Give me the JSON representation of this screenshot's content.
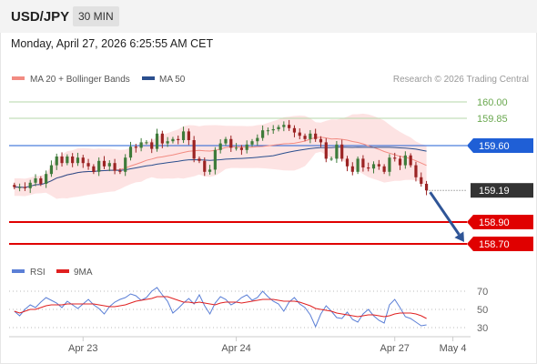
{
  "header": {
    "pair": "USD/JPY",
    "timeframe": "30 MIN"
  },
  "datetime": "Monday, April 27, 2026 6:25:55 AM CET",
  "legend": {
    "ma20": "MA 20 + Bollinger Bands",
    "ma50": "MA 50",
    "ma20_color": "#f28b82",
    "ma50_color": "#2b4f8e",
    "credit": "Research © 2026 Trading Central"
  },
  "rsi_legend": {
    "rsi": "RSI",
    "ma9": "9MA",
    "rsi_color": "#5b7fd6",
    "ma9_color": "#e02020"
  },
  "chart_data": {
    "type": "candlestick",
    "price_ylim": [
      158.6,
      160.1
    ],
    "levels": [
      {
        "value": 160.0,
        "label": "160.00",
        "kind": "resistance",
        "color": "#6aa84f"
      },
      {
        "value": 159.85,
        "label": "159.85",
        "kind": "resistance",
        "color": "#6aa84f"
      },
      {
        "value": 159.6,
        "label": "159.60",
        "kind": "pivot",
        "color": "#1f5fd6"
      },
      {
        "value": 159.19,
        "label": "159.19",
        "kind": "current",
        "color": "#333333"
      },
      {
        "value": 158.9,
        "label": "158.90",
        "kind": "support",
        "color": "#e00000"
      },
      {
        "value": 158.7,
        "label": "158.70",
        "kind": "support",
        "color": "#e00000"
      }
    ],
    "x_ticks": [
      "Apr 23",
      "Apr 24",
      "Apr 27",
      "May 4"
    ],
    "x_tick_index": [
      13,
      42,
      72,
      83
    ],
    "x_range": [
      -1,
      86
    ],
    "close": [
      159.22,
      159.22,
      159.21,
      159.26,
      159.3,
      159.25,
      159.34,
      159.42,
      159.5,
      159.44,
      159.5,
      159.44,
      159.49,
      159.44,
      159.41,
      159.36,
      159.46,
      159.41,
      159.44,
      159.37,
      159.36,
      159.49,
      159.59,
      159.58,
      159.63,
      159.63,
      159.57,
      159.71,
      159.62,
      159.64,
      159.66,
      159.65,
      159.73,
      159.65,
      159.48,
      159.46,
      159.36,
      159.38,
      159.56,
      159.62,
      159.66,
      159.58,
      159.58,
      159.56,
      159.61,
      159.64,
      159.67,
      159.74,
      159.74,
      159.75,
      159.77,
      159.79,
      159.76,
      159.72,
      159.69,
      159.66,
      159.71,
      159.66,
      159.63,
      159.48,
      159.48,
      159.61,
      159.48,
      159.41,
      159.36,
      159.48,
      159.4,
      159.39,
      159.43,
      159.41,
      159.36,
      159.49,
      159.48,
      159.42,
      159.51,
      159.42,
      159.31,
      159.25,
      159.19
    ],
    "forecast": {
      "from": 159.19,
      "to": 158.7,
      "direction": "down"
    },
    "rsi_ticks": [
      70,
      50,
      30
    ],
    "rsi_ylim": [
      25,
      78
    ],
    "rsi": [
      48,
      43,
      50,
      55,
      52,
      58,
      63,
      60,
      57,
      52,
      59,
      55,
      51,
      56,
      61,
      55,
      51,
      45,
      53,
      58,
      61,
      63,
      67,
      65,
      60,
      63,
      70,
      74,
      66,
      59,
      46,
      51,
      57,
      62,
      56,
      66,
      54,
      45,
      57,
      64,
      61,
      55,
      58,
      63,
      66,
      60,
      63,
      70,
      64,
      59,
      56,
      48,
      58,
      63,
      56,
      52,
      44,
      31,
      45,
      54,
      48,
      41,
      40,
      47,
      39,
      36,
      45,
      50,
      43,
      38,
      35,
      55,
      61,
      52,
      42,
      40,
      36,
      32,
      33
    ],
    "rsi_ma9": [
      48,
      46,
      48,
      50,
      50,
      52,
      54,
      55,
      55,
      55,
      56,
      56,
      56,
      56,
      56,
      56,
      55,
      54,
      53,
      53,
      54,
      55,
      57,
      59,
      60,
      61,
      62,
      64,
      64,
      64,
      62,
      60,
      58,
      58,
      57,
      58,
      57,
      56,
      55,
      57,
      58,
      58,
      58,
      57,
      58,
      59,
      60,
      61,
      61,
      61,
      60,
      59,
      59,
      59,
      58,
      56,
      54,
      51,
      50,
      49,
      48,
      46,
      45,
      44,
      43,
      42,
      43,
      44,
      44,
      43,
      42,
      43,
      45,
      46,
      46,
      46,
      45,
      43,
      40
    ]
  }
}
